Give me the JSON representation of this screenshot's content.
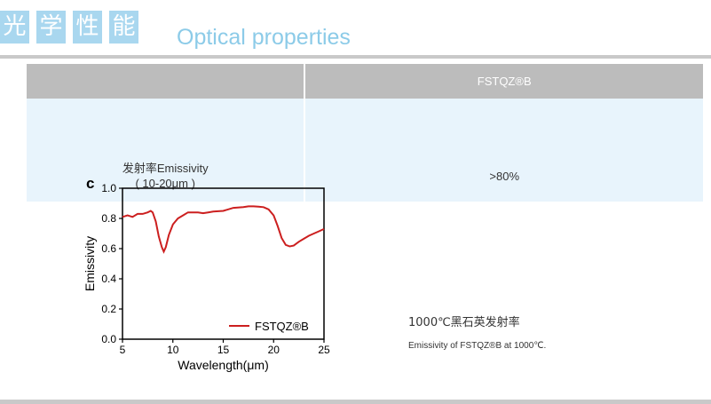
{
  "header": {
    "title_chars": [
      "光",
      "学",
      "性",
      "能"
    ],
    "title_en": "Optical properties"
  },
  "table": {
    "col1_header": "",
    "col2_header": "FSTQZ®B",
    "row_label_line1": "发射率Emissivity",
    "row_label_line2": "( 10-20μm )",
    "row_value": ">80%"
  },
  "caption": {
    "zh": "1000℃黑石英发射率",
    "en": "Emissivity of FSTQZ®B at 1000℃."
  },
  "colors": {
    "title_box": "#a9d7ef",
    "title_text": "#8ccbe8",
    "header_gray": "#bcbcbc",
    "row_blue": "#e8f4fc",
    "series_red": "#cc1f1f"
  },
  "chart_data": {
    "type": "line",
    "panel_label": "c",
    "xlabel": "Wavelength(μm)",
    "ylabel": "Emissivity",
    "xlim": [
      5,
      25
    ],
    "ylim": [
      0.0,
      1.0
    ],
    "xticks": [
      5,
      10,
      15,
      20,
      25
    ],
    "yticks": [
      0.0,
      0.2,
      0.4,
      0.6,
      0.8,
      1.0
    ],
    "xtick_labels": [
      "5",
      "10",
      "15",
      "20",
      "25"
    ],
    "ytick_labels": [
      "0.0",
      "0.2",
      "0.4",
      "0.6",
      "0.8",
      "1.0"
    ],
    "grid": false,
    "legend_position": "bottom-right",
    "series": [
      {
        "name": "FSTQZ®B",
        "x": [
          5.0,
          5.5,
          6.0,
          6.5,
          7.0,
          7.5,
          7.8,
          8.0,
          8.3,
          8.6,
          8.9,
          9.1,
          9.3,
          9.6,
          10.0,
          10.5,
          11.0,
          11.5,
          12.0,
          12.5,
          13.0,
          13.5,
          14.0,
          15.0,
          16.0,
          17.0,
          17.5,
          18.0,
          18.5,
          19.0,
          19.5,
          20.0,
          20.4,
          20.8,
          21.2,
          21.6,
          22.0,
          22.5,
          23.0,
          23.5,
          24.0,
          24.5,
          25.0
        ],
        "y": [
          0.81,
          0.82,
          0.81,
          0.83,
          0.83,
          0.84,
          0.85,
          0.84,
          0.78,
          0.68,
          0.61,
          0.58,
          0.61,
          0.69,
          0.76,
          0.8,
          0.82,
          0.84,
          0.84,
          0.84,
          0.835,
          0.84,
          0.845,
          0.85,
          0.87,
          0.875,
          0.88,
          0.88,
          0.878,
          0.875,
          0.86,
          0.82,
          0.75,
          0.67,
          0.625,
          0.615,
          0.62,
          0.645,
          0.665,
          0.685,
          0.7,
          0.715,
          0.73
        ]
      }
    ]
  }
}
